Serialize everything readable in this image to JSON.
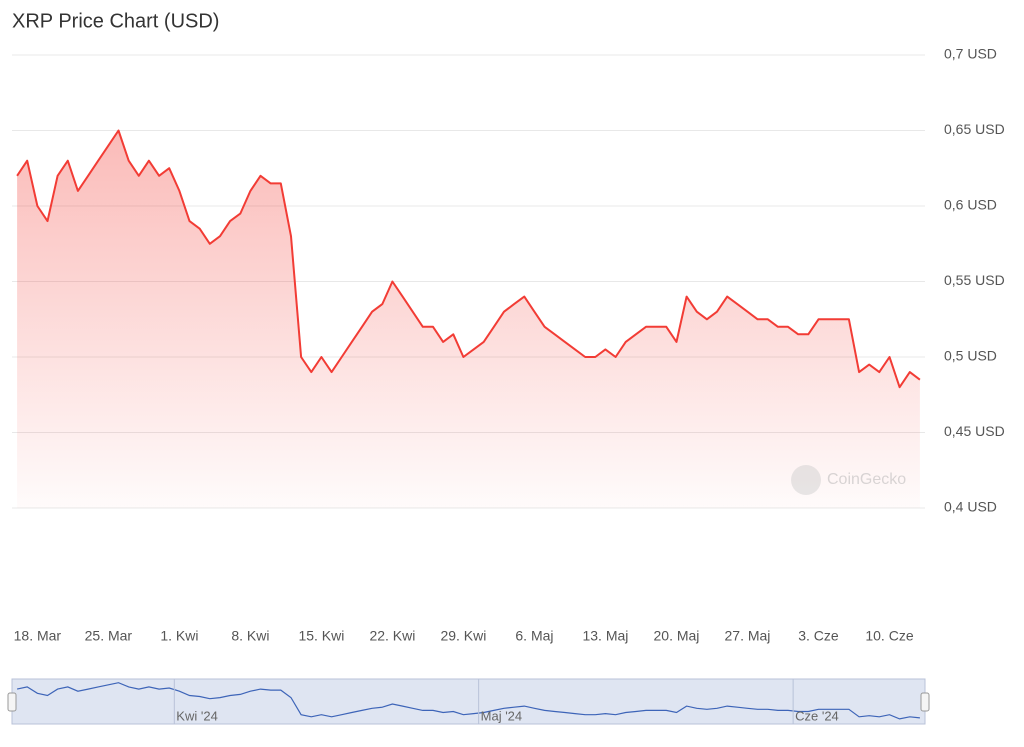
{
  "chart_data": {
    "type": "line",
    "title": "XRP Price Chart (USD)",
    "watermark": "CoinGecko",
    "categories": [
      null,
      null,
      "18. Mar",
      null,
      null,
      null,
      null,
      null,
      null,
      "25. Mar",
      null,
      null,
      null,
      null,
      null,
      null,
      "1. Kwi",
      null,
      null,
      null,
      null,
      null,
      null,
      "8. Kwi",
      null,
      null,
      null,
      null,
      null,
      null,
      "15. Kwi",
      null,
      null,
      null,
      null,
      null,
      null,
      "22. Kwi",
      null,
      null,
      null,
      null,
      null,
      null,
      "29. Kwi",
      null,
      null,
      null,
      null,
      null,
      null,
      "6. Maj",
      null,
      null,
      null,
      null,
      null,
      null,
      "13. Maj",
      null,
      null,
      null,
      null,
      null,
      null,
      "20. Maj",
      null,
      null,
      null,
      null,
      null,
      null,
      "27. Maj",
      null,
      null,
      null,
      null,
      null,
      null,
      "3. Cze",
      null,
      null,
      null,
      null,
      null,
      null,
      "10. Cze",
      null,
      null,
      null
    ],
    "values": [
      0.62,
      0.63,
      0.6,
      0.59,
      0.62,
      0.63,
      0.61,
      0.62,
      0.63,
      0.64,
      0.65,
      0.63,
      0.62,
      0.63,
      0.62,
      0.625,
      0.61,
      0.59,
      0.585,
      0.575,
      0.58,
      0.59,
      0.595,
      0.61,
      0.62,
      0.615,
      0.615,
      0.58,
      0.5,
      0.49,
      0.5,
      0.49,
      0.5,
      0.51,
      0.52,
      0.53,
      0.535,
      0.55,
      0.54,
      0.53,
      0.52,
      0.52,
      0.51,
      0.515,
      0.5,
      0.505,
      0.51,
      0.52,
      0.53,
      0.535,
      0.54,
      0.53,
      0.52,
      0.515,
      0.51,
      0.505,
      0.5,
      0.5,
      0.505,
      0.5,
      0.51,
      0.515,
      0.52,
      0.52,
      0.52,
      0.51,
      0.54,
      0.53,
      0.525,
      0.53,
      0.54,
      0.535,
      0.53,
      0.525,
      0.525,
      0.52,
      0.52,
      0.515,
      0.515,
      0.525,
      0.525,
      0.525,
      0.525,
      0.49,
      0.495,
      0.49,
      0.5,
      0.48,
      0.49,
      0.485
    ],
    "color": "#f23c35",
    "ylim": [
      0.4,
      0.7
    ],
    "yticks": [
      {
        "value": 0.4,
        "label": "0,4 USD"
      },
      {
        "value": 0.45,
        "label": "0,45 USD"
      },
      {
        "value": 0.5,
        "label": "0,5 USD"
      },
      {
        "value": 0.55,
        "label": "0,55 USD"
      },
      {
        "value": 0.6,
        "label": "0,6 USD"
      },
      {
        "value": 0.65,
        "label": "0,65 USD"
      },
      {
        "value": 0.7,
        "label": "0,7 USD"
      }
    ],
    "grid": true,
    "navigator_labels": [
      "Kwi '24",
      "Maj '24",
      "Cze '24"
    ]
  }
}
